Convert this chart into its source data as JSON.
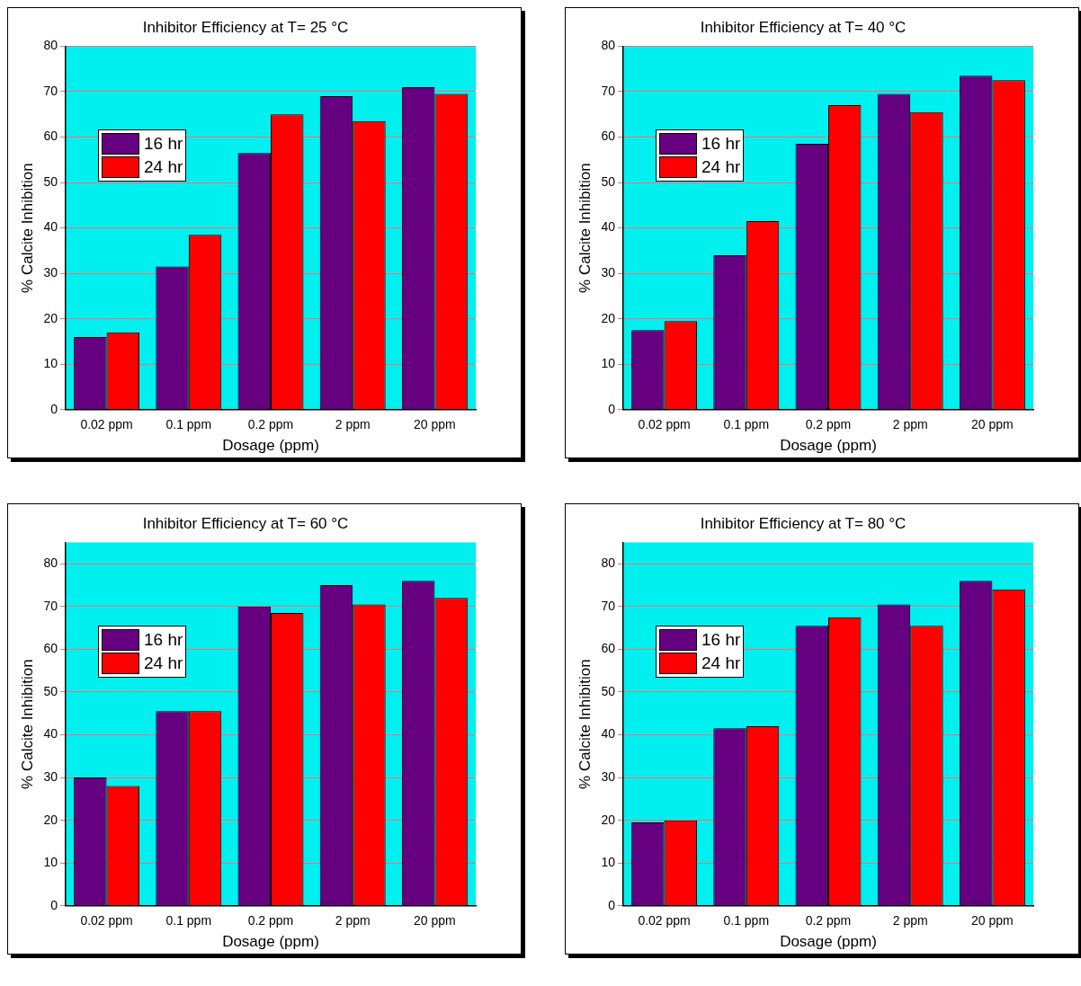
{
  "chart_data": [
    {
      "type": "bar",
      "title": "Inhibitor Efficiency at T= 25 °C",
      "xlabel": "Dosage (ppm)",
      "ylabel": "% Calcite Inhibition",
      "categories": [
        "0.02 ppm",
        "0.1 ppm",
        "0.2 ppm",
        "2 ppm",
        "20 ppm"
      ],
      "series": [
        {
          "name": "16 hr",
          "color": "#660080",
          "values": [
            16,
            31.5,
            56.5,
            69,
            71
          ]
        },
        {
          "name": "24 hr",
          "color": "#ff0000",
          "values": [
            17,
            38.5,
            65,
            63.5,
            69.5
          ]
        }
      ],
      "ylim": [
        0,
        80
      ],
      "yticks": [
        0,
        10,
        20,
        30,
        40,
        50,
        60,
        70,
        80
      ],
      "grid": "y",
      "legend": "top left"
    },
    {
      "type": "bar",
      "title": "Inhibitor Efficiency at T= 40 °C",
      "xlabel": "Dosage (ppm)",
      "ylabel": "% Calcite Inhibition",
      "categories": [
        "0.02 ppm",
        "0.1 ppm",
        "0.2 ppm",
        "2 ppm",
        "20 ppm"
      ],
      "series": [
        {
          "name": "16 hr",
          "color": "#660080",
          "values": [
            17.5,
            34,
            58.5,
            69.5,
            73.5
          ]
        },
        {
          "name": "24 hr",
          "color": "#ff0000",
          "values": [
            19.5,
            41.5,
            67,
            65.5,
            72.5
          ]
        }
      ],
      "ylim": [
        0,
        80
      ],
      "yticks": [
        0,
        10,
        20,
        30,
        40,
        50,
        60,
        70,
        80
      ],
      "grid": "y",
      "legend": "top left"
    },
    {
      "type": "bar",
      "title": "Inhibitor Efficiency at T= 60 °C",
      "xlabel": "Dosage (ppm)",
      "ylabel": "% Calcite Inhibition",
      "categories": [
        "0.02 ppm",
        "0.1 ppm",
        "0.2 ppm",
        "2 ppm",
        "20 ppm"
      ],
      "series": [
        {
          "name": "16 hr",
          "color": "#660080",
          "values": [
            30,
            45.5,
            70,
            75,
            76
          ]
        },
        {
          "name": "24 hr",
          "color": "#ff0000",
          "values": [
            28,
            45.5,
            68.5,
            70.5,
            72
          ]
        }
      ],
      "ylim": [
        0,
        85
      ],
      "yticks": [
        0,
        10,
        20,
        30,
        40,
        50,
        60,
        70,
        80
      ],
      "grid": "y",
      "legend": "top left"
    },
    {
      "type": "bar",
      "title": "Inhibitor Efficiency at T= 80 °C",
      "xlabel": "Dosage (ppm)",
      "ylabel": "% Calcite Inhibition",
      "categories": [
        "0.02 ppm",
        "0.1 ppm",
        "0.2 ppm",
        "2 ppm",
        "20 ppm"
      ],
      "series": [
        {
          "name": "16 hr",
          "color": "#660080",
          "values": [
            19.5,
            41.5,
            65.5,
            70.5,
            76
          ]
        },
        {
          "name": "24 hr",
          "color": "#ff0000",
          "values": [
            20,
            42,
            67.5,
            65.5,
            74
          ]
        }
      ],
      "ylim": [
        0,
        85
      ],
      "yticks": [
        0,
        10,
        20,
        30,
        40,
        50,
        60,
        70,
        80
      ],
      "grid": "y",
      "legend": "top left"
    }
  ]
}
